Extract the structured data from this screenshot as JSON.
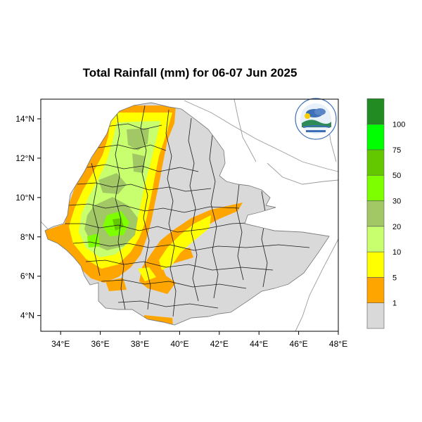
{
  "title": "Total Rainfall (mm) for 06-07 Jun 2025",
  "map": {
    "lon_range": [
      33,
      48
    ],
    "lat_range": [
      3.2,
      15
    ],
    "x_ticks": [
      "34°E",
      "36°E",
      "38°E",
      "40°E",
      "42°E",
      "44°E",
      "46°E",
      "48°E"
    ],
    "y_ticks": [
      "4°N",
      "6°N",
      "8°N",
      "10°N",
      "12°N",
      "14°N"
    ],
    "land_color": "#d9d9d9",
    "background_color": "#ffffff"
  },
  "legend": {
    "levels": [
      {
        "label": "1",
        "color": "#d9d9d9"
      },
      {
        "label": "5",
        "color": "#ffa500"
      },
      {
        "label": "10",
        "color": "#ffff00"
      },
      {
        "label": "20",
        "color": "#c8ff6e"
      },
      {
        "label": "30",
        "color": "#a2c865"
      },
      {
        "label": "50",
        "color": "#7dff00"
      },
      {
        "label": "75",
        "color": "#64c800"
      },
      {
        "label": "100",
        "color": "#00ff00"
      },
      {
        "label": "",
        "color": "#228b22"
      }
    ]
  },
  "logo": {
    "name": "ethiopian-meteorology-logo-icon"
  }
}
